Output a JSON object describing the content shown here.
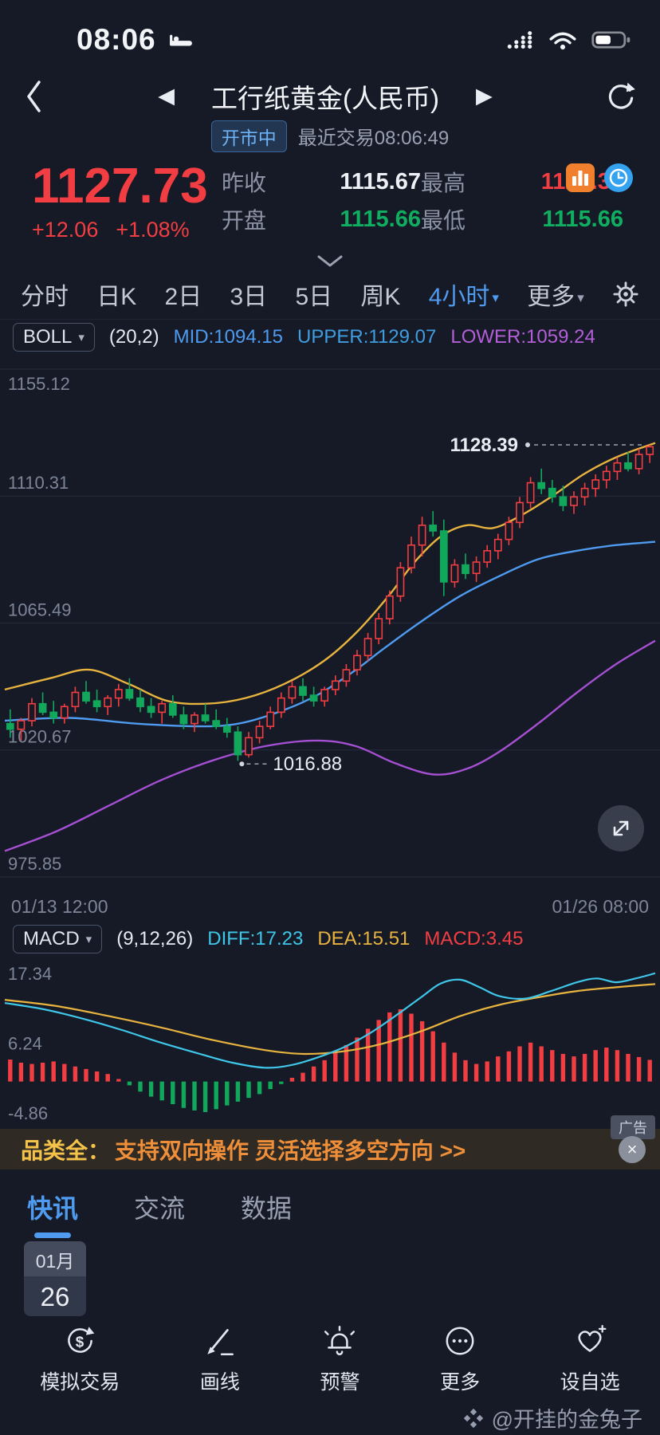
{
  "status_bar": {
    "time": "08:06",
    "battery_level": "55%"
  },
  "icons": {
    "prev": "◀",
    "next": "▶",
    "caret_down": "▾",
    "close": "×"
  },
  "header": {
    "title": "工行纸黄金(人民币)",
    "market_status": "开市中",
    "last_trade": "最近交易08:06:49"
  },
  "quote": {
    "price": "1127.73",
    "change": "+12.06",
    "change_pct": "+1.08%",
    "fields": [
      {
        "label": "昨收",
        "value": "1115.67"
      },
      {
        "label": "最高",
        "value": "1128.39"
      },
      {
        "label": "开盘",
        "value": "1115.66"
      },
      {
        "label": "最低",
        "value": "1115.66"
      }
    ]
  },
  "period_tabs": {
    "items": [
      {
        "label": "分时",
        "active": false
      },
      {
        "label": "日K",
        "active": false
      },
      {
        "label": "2日",
        "active": false
      },
      {
        "label": "3日",
        "active": false
      },
      {
        "label": "5日",
        "active": false
      },
      {
        "label": "周K",
        "active": false
      },
      {
        "label": "4小时",
        "active": true
      },
      {
        "label": "更多",
        "active": false
      }
    ]
  },
  "boll": {
    "name": "BOLL",
    "params": "(20,2)",
    "mid": "MID:1094.15",
    "upper": "UPPER:1129.07",
    "lower": "LOWER:1059.24"
  },
  "macd": {
    "name": "MACD",
    "params": "(9,12,26)",
    "diff": "DIFF:17.23",
    "dea": "DEA:15.51",
    "macd": "MACD:3.45"
  },
  "chart_x_labels": {
    "left": "01/13 12:00",
    "right": "01/26 08:00"
  },
  "ad_banner": {
    "prefix": "品类全：",
    "text": "支持双向操作 灵活选择多空方向 >>",
    "tag": "广告"
  },
  "news_tabs": {
    "items": [
      "快讯",
      "交流",
      "数据"
    ]
  },
  "date_chip": {
    "month": "01月",
    "day": "26"
  },
  "toolbar": {
    "items": [
      {
        "label": "模拟交易"
      },
      {
        "label": "画线"
      },
      {
        "label": "预警"
      },
      {
        "label": "更多"
      },
      {
        "label": "设自选"
      }
    ]
  },
  "watermark": {
    "text": "@开挂的金兔子"
  },
  "colors": {
    "background": "#151a26",
    "accent_blue": "#4f9bf0",
    "up_red": "#f23e42",
    "down_green": "#0fae60",
    "diff_cyan": "#3fc6e8",
    "dea_yellow": "#e8b33f",
    "band_purple": "#a54fd2"
  },
  "chart_data": [
    {
      "type": "candlestick",
      "title": "工行纸黄金(人民币) 4小时K线 BOLL(20,2)",
      "ylim": [
        975.85,
        1155.12
      ],
      "y_ticks": [
        1155.12,
        1110.31,
        1065.49,
        1020.67,
        975.85
      ],
      "x_range": [
        "01/13 12:00",
        "01/26 08:00"
      ],
      "annotations": [
        {
          "label": "1128.39",
          "price": 1128.39,
          "anchor": "last-candle-high"
        },
        {
          "label": "1016.88",
          "price": 1016.88,
          "candle": 21,
          "anchor": "low"
        }
      ],
      "colors": {
        "up": "#f23e42",
        "down": "#12a85c",
        "mid": "#4f9bf0",
        "upper": "#e8b33f",
        "lower": "#a54fd2"
      },
      "boll": {
        "upper": [
          [
            0,
            1042
          ],
          [
            7,
            1046
          ],
          [
            13,
            1049
          ],
          [
            19,
            1044
          ],
          [
            25,
            1038
          ],
          [
            31,
            1037
          ],
          [
            37,
            1039
          ],
          [
            43,
            1044
          ],
          [
            49,
            1052
          ],
          [
            54,
            1062
          ],
          [
            59,
            1075
          ],
          [
            63,
            1087
          ],
          [
            67,
            1096
          ],
          [
            71,
            1100
          ],
          [
            75,
            1099
          ],
          [
            79,
            1103
          ],
          [
            84,
            1110
          ],
          [
            89,
            1118
          ],
          [
            94,
            1124
          ],
          [
            100,
            1129.07
          ]
        ],
        "mid": [
          [
            0,
            1031
          ],
          [
            10,
            1032
          ],
          [
            20,
            1030
          ],
          [
            30,
            1029
          ],
          [
            36,
            1030
          ],
          [
            42,
            1034
          ],
          [
            48,
            1040
          ],
          [
            54,
            1049
          ],
          [
            58,
            1056
          ],
          [
            64,
            1066
          ],
          [
            70,
            1075
          ],
          [
            76,
            1082
          ],
          [
            82,
            1088
          ],
          [
            88,
            1091
          ],
          [
            94,
            1093
          ],
          [
            100,
            1094.15
          ]
        ],
        "lower": [
          [
            0,
            985
          ],
          [
            8,
            992
          ],
          [
            16,
            1001
          ],
          [
            24,
            1010
          ],
          [
            32,
            1017
          ],
          [
            40,
            1022
          ],
          [
            48,
            1024
          ],
          [
            54,
            1022
          ],
          [
            60,
            1016
          ],
          [
            66,
            1012
          ],
          [
            71,
            1014
          ],
          [
            76,
            1020
          ],
          [
            82,
            1030
          ],
          [
            88,
            1041
          ],
          [
            94,
            1051
          ],
          [
            100,
            1059.24
          ]
        ]
      },
      "candles": [
        [
          1030,
          1035,
          1025,
          1028
        ],
        [
          1028,
          1032,
          1024,
          1031
        ],
        [
          1031,
          1039,
          1029,
          1037
        ],
        [
          1037,
          1041,
          1033,
          1034
        ],
        [
          1034,
          1038,
          1030,
          1032
        ],
        [
          1032,
          1037,
          1030,
          1036
        ],
        [
          1036,
          1043,
          1034,
          1041
        ],
        [
          1041,
          1045,
          1037,
          1038
        ],
        [
          1038,
          1042,
          1034,
          1036
        ],
        [
          1036,
          1040,
          1033,
          1039
        ],
        [
          1039,
          1044,
          1036,
          1042
        ],
        [
          1042,
          1046,
          1038,
          1039
        ],
        [
          1039,
          1042,
          1034,
          1036
        ],
        [
          1036,
          1039,
          1032,
          1034
        ],
        [
          1034,
          1038,
          1030,
          1037
        ],
        [
          1037,
          1040,
          1032,
          1033
        ],
        [
          1033,
          1036,
          1028,
          1030
        ],
        [
          1030,
          1034,
          1027,
          1033
        ],
        [
          1033,
          1037,
          1030,
          1031
        ],
        [
          1031,
          1035,
          1028,
          1029
        ],
        [
          1029,
          1032,
          1025,
          1027
        ],
        [
          1027,
          1029,
          1016.88,
          1019
        ],
        [
          1019,
          1027,
          1018,
          1025
        ],
        [
          1025,
          1031,
          1023,
          1029
        ],
        [
          1029,
          1036,
          1028,
          1034
        ],
        [
          1034,
          1041,
          1032,
          1039
        ],
        [
          1039,
          1045,
          1037,
          1043
        ],
        [
          1043,
          1046,
          1038,
          1040
        ],
        [
          1040,
          1043,
          1036,
          1038
        ],
        [
          1038,
          1043,
          1036,
          1042
        ],
        [
          1042,
          1047,
          1040,
          1045
        ],
        [
          1045,
          1051,
          1043,
          1049
        ],
        [
          1049,
          1056,
          1047,
          1054
        ],
        [
          1054,
          1062,
          1052,
          1060
        ],
        [
          1060,
          1069,
          1058,
          1067
        ],
        [
          1067,
          1077,
          1065,
          1075
        ],
        [
          1075,
          1087,
          1073,
          1085
        ],
        [
          1085,
          1096,
          1083,
          1093
        ],
        [
          1093,
          1103,
          1089,
          1100
        ],
        [
          1100,
          1105,
          1096,
          1098
        ],
        [
          1098,
          1102,
          1075,
          1080
        ],
        [
          1080,
          1088,
          1078,
          1086
        ],
        [
          1086,
          1090,
          1081,
          1083
        ],
        [
          1083,
          1089,
          1080,
          1087
        ],
        [
          1087,
          1093,
          1085,
          1091
        ],
        [
          1091,
          1097,
          1088,
          1095
        ],
        [
          1095,
          1103,
          1093,
          1101
        ],
        [
          1101,
          1110,
          1099,
          1108
        ],
        [
          1108,
          1117,
          1106,
          1115
        ],
        [
          1115,
          1120,
          1111,
          1113
        ],
        [
          1113,
          1116,
          1108,
          1110
        ],
        [
          1110,
          1114,
          1105,
          1107
        ],
        [
          1107,
          1112,
          1104,
          1110
        ],
        [
          1110,
          1115,
          1107,
          1113
        ],
        [
          1113,
          1118,
          1110,
          1116
        ],
        [
          1116,
          1121,
          1113,
          1119
        ],
        [
          1119,
          1124,
          1116,
          1122
        ],
        [
          1122,
          1126,
          1119,
          1120
        ],
        [
          1120,
          1127,
          1118,
          1125
        ],
        [
          1125,
          1128.39,
          1122,
          1127.73
        ]
      ]
    },
    {
      "type": "macd",
      "params": [
        9,
        12,
        26
      ],
      "y_ticks": [
        17.34,
        6.24,
        -4.86
      ],
      "latest": {
        "diff": 17.23,
        "dea": 15.51,
        "macd": 3.45
      },
      "colors": {
        "pos": "#f23e42",
        "neg": "#12a85c",
        "diff": "#3fc6e8",
        "dea": "#e8b33f"
      },
      "hist": [
        3.5,
        3,
        2.8,
        3,
        3.2,
        2.8,
        2.4,
        2,
        1.6,
        1.2,
        0.4,
        -0.6,
        -1.6,
        -2.4,
        -3,
        -3.6,
        -4.2,
        -4.6,
        -4.86,
        -4.4,
        -3.8,
        -3.2,
        -2.6,
        -2,
        -1.2,
        -0.4,
        0.6,
        1.4,
        2.4,
        3.4,
        4.6,
        5.8,
        7,
        8.4,
        9.8,
        11,
        11.5,
        10.8,
        9.6,
        8,
        6.2,
        4.6,
        3.4,
        2.8,
        3.2,
        4,
        4.8,
        5.6,
        6.2,
        5.6,
        5,
        4.4,
        4,
        4.4,
        5,
        5.4,
        5,
        4.4,
        3.9,
        3.45
      ],
      "diff": [
        [
          0,
          12.5
        ],
        [
          6,
          11.5
        ],
        [
          12,
          10
        ],
        [
          18,
          8.2
        ],
        [
          24,
          6.2
        ],
        [
          30,
          4.4
        ],
        [
          35,
          3
        ],
        [
          40,
          2.2
        ],
        [
          44,
          2.6
        ],
        [
          48,
          3.8
        ],
        [
          52,
          5.4
        ],
        [
          56,
          7.6
        ],
        [
          60,
          10.4
        ],
        [
          64,
          13.4
        ],
        [
          67,
          15.6
        ],
        [
          70,
          16.2
        ],
        [
          73,
          15
        ],
        [
          76,
          13.6
        ],
        [
          80,
          13.2
        ],
        [
          84,
          14.4
        ],
        [
          88,
          15.8
        ],
        [
          91,
          16.4
        ],
        [
          94,
          15.8
        ],
        [
          97,
          16.4
        ],
        [
          100,
          17.23
        ]
      ],
      "dea": [
        [
          0,
          13
        ],
        [
          8,
          12
        ],
        [
          16,
          10.4
        ],
        [
          24,
          8.6
        ],
        [
          32,
          6.6
        ],
        [
          40,
          5
        ],
        [
          46,
          4.4
        ],
        [
          52,
          4.8
        ],
        [
          58,
          6
        ],
        [
          64,
          8
        ],
        [
          70,
          10.4
        ],
        [
          76,
          12.2
        ],
        [
          82,
          13.4
        ],
        [
          88,
          14.4
        ],
        [
          94,
          15
        ],
        [
          100,
          15.51
        ]
      ]
    }
  ]
}
